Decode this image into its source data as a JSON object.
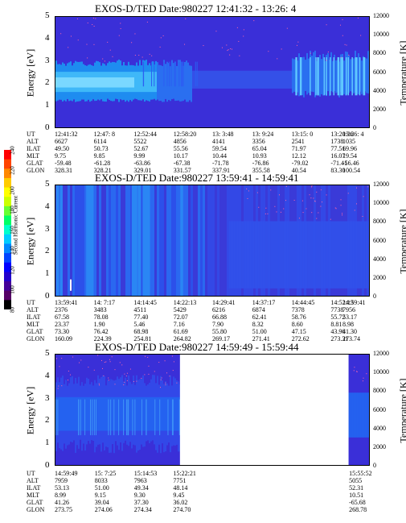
{
  "colorbar": {
    "label": "Second Harmonic Current",
    "ticks": [
      "240",
      "220",
      "200",
      "180",
      "160",
      "140",
      "120",
      "100",
      "80"
    ],
    "colors": [
      "#ff0000",
      "#ff4400",
      "#ff8800",
      "#ffcc00",
      "#ffff00",
      "#ccff00",
      "#66ff33",
      "#00ff66",
      "#00ffcc",
      "#00ccff",
      "#0088ff",
      "#0044ff",
      "#0000ff",
      "#2200cc",
      "#440099",
      "#550066",
      "#000000"
    ]
  },
  "axis_labels": {
    "left": "Energy [eV]",
    "right": "Temperature [K]"
  },
  "row_labels": [
    "UT",
    "ALT",
    "ILAT",
    "MLT",
    "GLAT",
    "GLON"
  ],
  "chart_data": [
    {
      "type": "heatmap",
      "title": "EXOS-D/TED    Date:980227  12:41:32 - 13:26: 4",
      "ylim": [
        0,
        5
      ],
      "y_ticks": [
        0,
        1,
        2,
        3,
        4,
        5
      ],
      "y2lim": [
        0,
        12000
      ],
      "y2_ticks": [
        0,
        2000,
        4000,
        6000,
        8000,
        10000,
        12000
      ],
      "columns": [
        [
          "12:41:32",
          "6627",
          "49.50",
          "9.75",
          "-59.48",
          "328.31"
        ],
        [
          "12:47: 8",
          "6114",
          "50.73",
          "9.85",
          "-61.28",
          "328.21"
        ],
        [
          "12:52:44",
          "5522",
          "52.67",
          "9.99",
          "-63.86",
          "329.01"
        ],
        [
          "12:58:20",
          "4856",
          "55.56",
          "10.17",
          "-67.38",
          "331.57"
        ],
        [
          "13: 3:48",
          "4141",
          "59.54",
          "10.44",
          "-71.78",
          "337.91"
        ],
        [
          "13: 9:24",
          "3356",
          "65.04",
          "10.93",
          "-76.86",
          "355.58"
        ],
        [
          "13:15: 0",
          "2541",
          "71.97",
          "12.12",
          "-79.02",
          "40.54"
        ],
        [
          "13:20:36",
          "1738",
          "77.51",
          "16.07",
          "-71.41",
          "83.30"
        ],
        [
          "13:26: 4",
          "1035",
          "69.96",
          "19.54",
          "-56.46",
          "100.54"
        ]
      ]
    },
    {
      "type": "heatmap",
      "title": "EXOS-D/TED    Date:980227  13:59:41 - 14:59:41",
      "ylim": [
        0,
        5
      ],
      "y_ticks": [
        0,
        1,
        2,
        3,
        4,
        5
      ],
      "y2lim": [
        0,
        12000
      ],
      "y2_ticks": [
        0,
        2000,
        4000,
        6000,
        8000,
        10000,
        12000
      ],
      "columns": [
        [
          "13:59:41",
          "2376",
          "67.58",
          "23.37",
          "73.30",
          "160.09"
        ],
        [
          "14: 7:17",
          "3483",
          "78.08",
          "1.90",
          "76.42",
          "224.39"
        ],
        [
          "14:14:45",
          "4511",
          "77.40",
          "5.46",
          "68.98",
          "254.81"
        ],
        [
          "14:22:13",
          "5429",
          "72.07",
          "7.16",
          "61.69",
          "264.82"
        ],
        [
          "14:29:41",
          "6216",
          "66.88",
          "7.90",
          "55.80",
          "269.17"
        ],
        [
          "14:37:17",
          "6874",
          "62.41",
          "8.32",
          "51.00",
          "271.41"
        ],
        [
          "14:44:45",
          "7378",
          "58.76",
          "8.60",
          "47.15",
          "272.62"
        ],
        [
          "14:52:13",
          "7738",
          "55.72",
          "8.81",
          "43.96",
          "273.31"
        ],
        [
          "14:59:41",
          "7956",
          "53.17",
          "8.98",
          "41.30",
          "273.74"
        ]
      ]
    },
    {
      "type": "heatmap",
      "title": "EXOS-D/TED    Date:980227  14:59:49 - 15:59:44",
      "ylim": [
        0,
        5
      ],
      "y_ticks": [
        0,
        1,
        2,
        3,
        4,
        5
      ],
      "y2lim": [
        0,
        12000
      ],
      "y2_ticks": [
        0,
        2000,
        4000,
        6000,
        8000,
        10000,
        12000
      ],
      "columns": [
        [
          "14:59:49",
          "7959",
          "53.13",
          "8.99",
          "41.26",
          "273.75"
        ],
        [
          "15: 7:25",
          "8033",
          "51.00",
          "9.15",
          "39.04",
          "274.06"
        ],
        [
          "15:14:53",
          "7963",
          "49.34",
          "9.30",
          "37.30",
          "274.34"
        ],
        [
          "15:22:21",
          "7751",
          "48.14",
          "9.45",
          "36.02",
          "274.70"
        ],
        [
          "15:55:52",
          "5055",
          "52.31",
          "10.51",
          "-65.68",
          "268.78"
        ]
      ],
      "column_time_fractions": [
        0,
        0.127,
        0.252,
        0.376,
        0.934
      ],
      "data_gap": {
        "from": "15:22:21",
        "to": "15:55:52"
      }
    }
  ]
}
